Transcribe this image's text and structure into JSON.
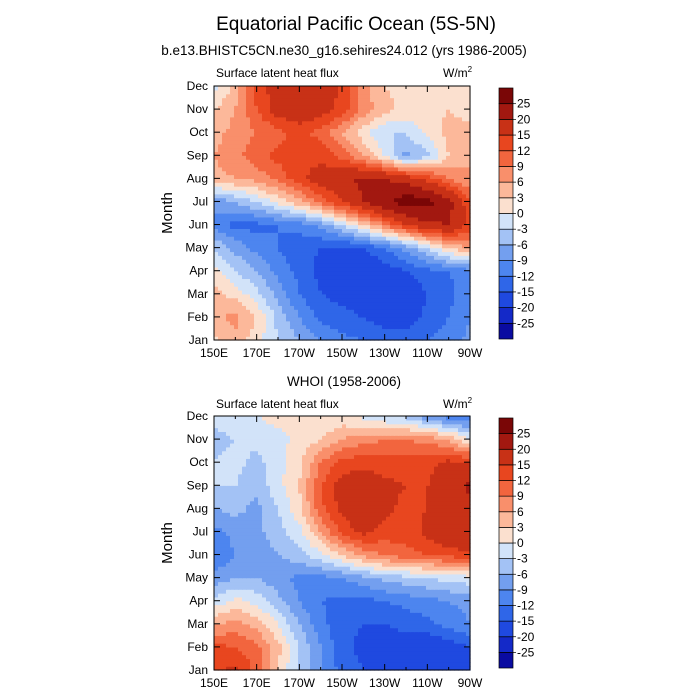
{
  "figure": {
    "title": "Equatorial Pacific Ocean (5S-5N)"
  },
  "panels": [
    {
      "title": "b.e13.BHISTC5CN.ne30_g16.sehires24.012 (yrs 1986-2005)",
      "left_label": "Surface latent heat flux",
      "right_label": "W/m",
      "right_label_sup": "2"
    },
    {
      "title": "WHOI (1958-2006)",
      "left_label": "Surface latent heat flux",
      "right_label": "W/m",
      "right_label_sup": "2"
    }
  ],
  "chart_data": [
    {
      "type": "heatmap",
      "title": "b.e13.BHISTC5CN.ne30_g16.sehires24.012 (yrs 1986-2005)",
      "ylabel": "Month",
      "xlabel": "",
      "x_ticks": [
        "150E",
        "170E",
        "170W",
        "150W",
        "130W",
        "110W",
        "90W"
      ],
      "x_range_deg_east": [
        150,
        270
      ],
      "y_ticks": [
        "Jan",
        "Feb",
        "Mar",
        "Apr",
        "May",
        "Jun",
        "Jul",
        "Aug",
        "Sep",
        "Oct",
        "Nov",
        "Dec"
      ],
      "longitudes": [
        150,
        160,
        170,
        180,
        190,
        200,
        210,
        220,
        230,
        240,
        250,
        260,
        270
      ],
      "months": [
        "Jan",
        "Feb",
        "Mar",
        "Apr",
        "May",
        "Jun",
        "Jul",
        "Aug",
        "Sep",
        "Oct",
        "Nov",
        "Dec"
      ],
      "values": [
        [
          2,
          5,
          1,
          -3,
          -6,
          -9,
          -11,
          -12,
          -13,
          -13,
          -12,
          -11,
          -8
        ],
        [
          5,
          7,
          3,
          -4,
          -9,
          -13,
          -14,
          -15,
          -17,
          -17,
          -14,
          -12,
          -9
        ],
        [
          4,
          2,
          -2,
          -7,
          -12,
          -15,
          -16,
          -17,
          -18,
          -18,
          -15,
          -13,
          -10
        ],
        [
          1,
          -3,
          -6,
          -10,
          -13,
          -16,
          -18,
          -19,
          -17,
          -15,
          -13,
          -12,
          -10
        ],
        [
          -3,
          -7,
          -10,
          -12,
          -14,
          -15,
          -16,
          -15,
          -12,
          -8,
          -3,
          3,
          6
        ],
        [
          -10,
          -13,
          -13,
          -12,
          -11,
          -8,
          -3,
          3,
          9,
          15,
          19,
          20,
          14
        ],
        [
          -8,
          -6,
          -3,
          1,
          5,
          10,
          15,
          20,
          24,
          28,
          27,
          22,
          12
        ],
        [
          5,
          6,
          7,
          10,
          14,
          17,
          19,
          21,
          20,
          18,
          14,
          9,
          6
        ],
        [
          6,
          8,
          11,
          13,
          14,
          14,
          11,
          6,
          0,
          -7,
          -4,
          3,
          6
        ],
        [
          5,
          7,
          9,
          11,
          13,
          11,
          6,
          1,
          -3,
          -3,
          1,
          4,
          4
        ],
        [
          3,
          6,
          12,
          17,
          18,
          17,
          14,
          8,
          4,
          2,
          2,
          3,
          2
        ],
        [
          -1,
          4,
          13,
          17,
          19,
          18,
          14,
          7,
          3,
          2,
          1,
          1,
          0
        ]
      ],
      "colorbar": {
        "levels": [
          -25,
          -20,
          -15,
          -12,
          -9,
          -6,
          -3,
          0,
          3,
          6,
          9,
          12,
          15,
          20,
          25
        ],
        "labels": [
          "-25",
          "-20",
          "-15",
          "-12",
          "-9",
          "-6",
          "-3",
          "0",
          "3",
          "6",
          "9",
          "12",
          "15",
          "20",
          "25"
        ],
        "colors": [
          "#0a0ba1",
          "#1429c8",
          "#1f49e0",
          "#2f66e8",
          "#4d85ef",
          "#739fef",
          "#a3c2f5",
          "#d2e3f9",
          "#fbe0cf",
          "#fcb89a",
          "#f98f6b",
          "#f2653e",
          "#e8461f",
          "#c83116",
          "#a21810",
          "#7a0606"
        ],
        "ticks_label_side": "right"
      }
    },
    {
      "type": "heatmap",
      "title": "WHOI (1958-2006)",
      "ylabel": "Month",
      "xlabel": "",
      "x_ticks": [
        "150E",
        "170E",
        "170W",
        "150W",
        "130W",
        "110W",
        "90W"
      ],
      "x_range_deg_east": [
        150,
        270
      ],
      "y_ticks": [
        "Jan",
        "Feb",
        "Mar",
        "Apr",
        "May",
        "Jun",
        "Jul",
        "Aug",
        "Sep",
        "Oct",
        "Nov",
        "Dec"
      ],
      "longitudes": [
        150,
        160,
        170,
        180,
        190,
        200,
        210,
        220,
        230,
        240,
        250,
        260,
        270
      ],
      "months": [
        "Jan",
        "Feb",
        "Mar",
        "Apr",
        "May",
        "Jun",
        "Jul",
        "Aug",
        "Sep",
        "Oct",
        "Nov",
        "Dec"
      ],
      "values": [
        [
          14,
          16,
          11,
          3,
          -4,
          -9,
          -13,
          -15,
          -17,
          -18,
          -19,
          -20,
          -20
        ],
        [
          13,
          12,
          10,
          4,
          -3,
          -9,
          -14,
          -16,
          -17,
          -17,
          -18,
          -17,
          -15
        ],
        [
          6,
          7,
          5,
          0,
          -6,
          -11,
          -14,
          -15,
          -15,
          -14,
          -13,
          -11,
          -9
        ],
        [
          -2,
          1,
          -1,
          -5,
          -9,
          -12,
          -13,
          -13,
          -12,
          -11,
          -10,
          -9,
          -8
        ],
        [
          -8,
          -6,
          -6,
          -8,
          -10,
          -10,
          -9,
          -7,
          -5,
          -4,
          -3,
          -2,
          -1
        ],
        [
          -12,
          -9,
          -8,
          -6,
          -4,
          -1,
          3,
          7,
          9,
          11,
          12,
          13,
          14
        ],
        [
          -10,
          -8,
          -7,
          -4,
          -1,
          6,
          13,
          16,
          14,
          13,
          16,
          19,
          20
        ],
        [
          -6,
          -5,
          -7,
          -3,
          2,
          11,
          16,
          18,
          16,
          14,
          15,
          18,
          19
        ],
        [
          -3,
          -3,
          -5,
          -1,
          3,
          12,
          17,
          18,
          16,
          15,
          15,
          17,
          21
        ],
        [
          -3,
          -2,
          -4,
          -1,
          2,
          9,
          13,
          14,
          13,
          14,
          14,
          16,
          15
        ],
        [
          -4,
          -3,
          -2,
          -1,
          1,
          3,
          6,
          8,
          9,
          9,
          8,
          6,
          0
        ],
        [
          -2,
          -1,
          0,
          1,
          0,
          0,
          1,
          -1,
          -3,
          -4,
          -8,
          -11,
          -12
        ]
      ],
      "colorbar": {
        "levels": [
          -25,
          -20,
          -15,
          -12,
          -9,
          -6,
          -3,
          0,
          3,
          6,
          9,
          12,
          15,
          20,
          25
        ],
        "labels": [
          "-25",
          "-20",
          "-15",
          "-12",
          "-9",
          "-6",
          "-3",
          "0",
          "3",
          "6",
          "9",
          "12",
          "15",
          "20",
          "25"
        ],
        "colors": [
          "#0a0ba1",
          "#1429c8",
          "#1f49e0",
          "#2f66e8",
          "#4d85ef",
          "#739fef",
          "#a3c2f5",
          "#d2e3f9",
          "#fbe0cf",
          "#fcb89a",
          "#f98f6b",
          "#f2653e",
          "#e8461f",
          "#c83116",
          "#a21810",
          "#7a0606"
        ],
        "ticks_label_side": "right"
      }
    }
  ]
}
